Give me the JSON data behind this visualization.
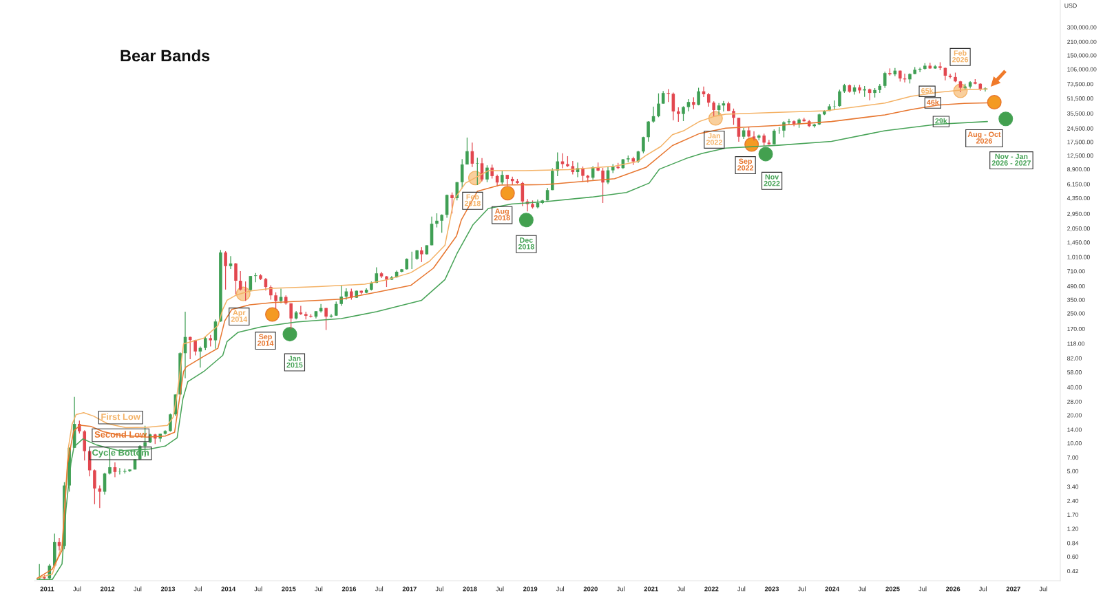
{
  "chart_data": {
    "type": "candlestick",
    "title": "Bear Bands",
    "ylabel": "USD",
    "log": "y",
    "xlim": [
      "2010-10-16",
      "2027-10-12"
    ],
    "ylim": [
      0.33,
      590000
    ],
    "xticks": [
      {
        "value": "2011",
        "label": "2011"
      },
      {
        "value": "2011-07",
        "label": "Jul"
      },
      {
        "value": "2012",
        "label": "2012"
      },
      {
        "value": "2012-07",
        "label": "Jul"
      },
      {
        "value": "2013",
        "label": "2013"
      },
      {
        "value": "2013-07",
        "label": "Jul"
      },
      {
        "value": "2014",
        "label": "2014"
      },
      {
        "value": "2014-07",
        "label": "Jul"
      },
      {
        "value": "2015",
        "label": "2015"
      },
      {
        "value": "2015-07",
        "label": "Jul"
      },
      {
        "value": "2016",
        "label": "2016"
      },
      {
        "value": "2016-07",
        "label": "Jul"
      },
      {
        "value": "2017",
        "label": "2017"
      },
      {
        "value": "2017-07",
        "label": "Jul"
      },
      {
        "value": "2018",
        "label": "2018"
      },
      {
        "value": "2018-07",
        "label": "Jul"
      },
      {
        "value": "2019",
        "label": "2019"
      },
      {
        "value": "2019-07",
        "label": "Jul"
      },
      {
        "value": "2020",
        "label": "2020"
      },
      {
        "value": "2020-07",
        "label": "Jul"
      },
      {
        "value": "2021",
        "label": "2021"
      },
      {
        "value": "2021-07",
        "label": "Jul"
      },
      {
        "value": "2022",
        "label": "2022"
      },
      {
        "value": "2022-07",
        "label": "Jul"
      },
      {
        "value": "2023",
        "label": "2023"
      },
      {
        "value": "2023-07",
        "label": "Jul"
      },
      {
        "value": "2024",
        "label": "2024"
      },
      {
        "value": "2024-07",
        "label": "Jul"
      },
      {
        "value": "2025",
        "label": "2025"
      },
      {
        "value": "2025-07",
        "label": "Jul"
      },
      {
        "value": "2026",
        "label": "2026"
      },
      {
        "value": "2026-07",
        "label": "Jul"
      },
      {
        "value": "2027",
        "label": "2027"
      },
      {
        "value": "2027-07",
        "label": "Jul"
      }
    ],
    "yticks": [
      {
        "value": 0.42,
        "label": "0.42"
      },
      {
        "value": 0.6,
        "label": "0.60"
      },
      {
        "value": 0.84,
        "label": "0.84"
      },
      {
        "value": 1.2,
        "label": "1.20"
      },
      {
        "value": 1.7,
        "label": "1.70"
      },
      {
        "value": 2.4,
        "label": "2.40"
      },
      {
        "value": 3.4,
        "label": "3.40"
      },
      {
        "value": 5,
        "label": "5.00"
      },
      {
        "value": 7,
        "label": "7.00"
      },
      {
        "value": 10,
        "label": "10.00"
      },
      {
        "value": 14,
        "label": "14.00"
      },
      {
        "value": 20,
        "label": "20.00"
      },
      {
        "value": 28,
        "label": "28.00"
      },
      {
        "value": 40,
        "label": "40.00"
      },
      {
        "value": 58,
        "label": "58.00"
      },
      {
        "value": 82,
        "label": "82.00"
      },
      {
        "value": 118,
        "label": "118.00"
      },
      {
        "value": 170,
        "label": "170.00"
      },
      {
        "value": 250,
        "label": "250.00"
      },
      {
        "value": 350,
        "label": "350.00"
      },
      {
        "value": 490,
        "label": "490.00"
      },
      {
        "value": 710,
        "label": "710.00"
      },
      {
        "value": 1010,
        "label": "1,010.00"
      },
      {
        "value": 1450,
        "label": "1,450.00"
      },
      {
        "value": 2050,
        "label": "2,050.00"
      },
      {
        "value": 2950,
        "label": "2,950.00"
      },
      {
        "value": 4350,
        "label": "4,350.00"
      },
      {
        "value": 6150,
        "label": "6,150.00"
      },
      {
        "value": 8900,
        "label": "8,900.00"
      },
      {
        "value": 12500,
        "label": "12,500.00"
      },
      {
        "value": 17500,
        "label": "17,500.00"
      },
      {
        "value": 24500,
        "label": "24,500.00"
      },
      {
        "value": 35500,
        "label": "35,500.00"
      },
      {
        "value": 51500,
        "label": "51,500.00"
      },
      {
        "value": 73500,
        "label": "73,500.00"
      },
      {
        "value": 106000,
        "label": "106,000.00"
      },
      {
        "value": 150000,
        "label": "150,000.00"
      },
      {
        "value": 210000,
        "label": "210,000.00"
      },
      {
        "value": 300000,
        "label": "300,000.00"
      }
    ],
    "series": [
      {
        "x": [
          "2010-11-15",
          "2010-12-15",
          "2011-01-15",
          "2011-02-15",
          "2011-03-15",
          "2011-04-15",
          "2011-05-15",
          "2011-06-15",
          "2011-07-15",
          "2011-08-15",
          "2011-09-15",
          "2011-10-15",
          "2011-11-15",
          "2011-12-15",
          "2012-01-15",
          "2012-02-15",
          "2012-03-15",
          "2012-04-15",
          "2012-05-15",
          "2012-06-15",
          "2012-07-15",
          "2012-08-15",
          "2012-09-15",
          "2012-10-15",
          "2012-11-15",
          "2012-12-15",
          "2013-01-15",
          "2013-02-15",
          "2013-03-15",
          "2013-04-15",
          "2013-05-15",
          "2013-06-15",
          "2013-07-15",
          "2013-08-15",
          "2013-09-15",
          "2013-10-15",
          "2013-11-15",
          "2013-12-15",
          "2014-01-15",
          "2014-02-15",
          "2014-03-15",
          "2014-04-15",
          "2014-05-15",
          "2014-06-15",
          "2014-07-15",
          "2014-08-15",
          "2014-09-15",
          "2014-10-15",
          "2014-11-15",
          "2014-12-15",
          "2015-01-15",
          "2015-02-15",
          "2015-03-15",
          "2015-04-15",
          "2015-05-15",
          "2015-06-15",
          "2015-07-15",
          "2015-08-15",
          "2015-09-15",
          "2015-10-15",
          "2015-11-15",
          "2015-12-15",
          "2016-01-15",
          "2016-02-15",
          "2016-03-15",
          "2016-04-15",
          "2016-05-15",
          "2016-06-15",
          "2016-07-15",
          "2016-08-15",
          "2016-09-15",
          "2016-10-15",
          "2016-11-15",
          "2016-12-15",
          "2017-01-15",
          "2017-02-15",
          "2017-03-15",
          "2017-04-15",
          "2017-05-15",
          "2017-06-15",
          "2017-07-15",
          "2017-08-15",
          "2017-09-15",
          "2017-10-15",
          "2017-11-15",
          "2017-12-15",
          "2018-01-15",
          "2018-02-15",
          "2018-03-15",
          "2018-04-15",
          "2018-05-15",
          "2018-06-15",
          "2018-07-15",
          "2018-08-15",
          "2018-09-15",
          "2018-10-15",
          "2018-11-15",
          "2018-12-15",
          "2019-01-15",
          "2019-02-15",
          "2019-03-15",
          "2019-04-15",
          "2019-05-15",
          "2019-06-15",
          "2019-07-15",
          "2019-08-15",
          "2019-09-15",
          "2019-10-15",
          "2019-11-15",
          "2019-12-15",
          "2020-01-15",
          "2020-02-15",
          "2020-03-15",
          "2020-04-15",
          "2020-05-15",
          "2020-06-15",
          "2020-07-15",
          "2020-08-15",
          "2020-09-15",
          "2020-10-15",
          "2020-11-15",
          "2020-12-15",
          "2021-01-15",
          "2021-02-15",
          "2021-03-15",
          "2021-04-15",
          "2021-05-15",
          "2021-06-15",
          "2021-07-15",
          "2021-08-15",
          "2021-09-15",
          "2021-10-15",
          "2021-11-15",
          "2021-12-15",
          "2022-01-15",
          "2022-02-15",
          "2022-03-15",
          "2022-04-15",
          "2022-05-15",
          "2022-06-15",
          "2022-07-15",
          "2022-08-15",
          "2022-09-15",
          "2022-10-15",
          "2022-11-15",
          "2022-12-15",
          "2023-01-15",
          "2023-02-15",
          "2023-03-15",
          "2023-04-15",
          "2023-05-15",
          "2023-06-15",
          "2023-07-15",
          "2023-08-15",
          "2023-09-15",
          "2023-10-15",
          "2023-11-15",
          "2023-12-15",
          "2024-01-15",
          "2024-02-15",
          "2024-03-15",
          "2024-04-15",
          "2024-05-15",
          "2024-06-15",
          "2024-07-15",
          "2024-08-15",
          "2024-09-15",
          "2024-10-15",
          "2024-11-15",
          "2024-12-15",
          "2025-01-15",
          "2025-02-15",
          "2025-03-15",
          "2025-04-15",
          "2025-05-15",
          "2025-06-15",
          "2025-07-15",
          "2025-08-15",
          "2025-09-15",
          "2025-10-15",
          "2025-11-15",
          "2025-12-15",
          "2026-01-15",
          "2026-02-15",
          "2026-03-15",
          "2026-04-15",
          "2026-05-15",
          "2026-06-15",
          "2026-07-15"
        ],
        "ohlc": [
          [
            0.35,
            0.5,
            0.34,
            0.36
          ],
          [
            0.36,
            0.38,
            0.34,
            0.35
          ],
          [
            0.35,
            0.5,
            0.34,
            0.48
          ],
          [
            0.48,
            1.06,
            0.48,
            0.86
          ],
          [
            0.86,
            0.95,
            0.7,
            0.78
          ],
          [
            0.78,
            3.8,
            0.72,
            3.5
          ],
          [
            3.5,
            9.0,
            3.0,
            8.9
          ],
          [
            8.9,
            31.5,
            8.9,
            16.1
          ],
          [
            16.1,
            17.5,
            12.7,
            13.4
          ],
          [
            13.4,
            13.8,
            6.5,
            8.2
          ],
          [
            8.2,
            8.5,
            4.4,
            5.1
          ],
          [
            5.1,
            5.2,
            2.2,
            3.25
          ],
          [
            3.25,
            3.5,
            2.0,
            3.0
          ],
          [
            3.0,
            4.8,
            2.8,
            4.7
          ],
          [
            4.7,
            7.4,
            4.6,
            5.5
          ],
          [
            5.5,
            6.2,
            4.3,
            4.9
          ],
          [
            4.9,
            5.4,
            4.6,
            4.92
          ],
          [
            4.92,
            5.3,
            4.7,
            5.0
          ],
          [
            5.0,
            5.2,
            4.9,
            5.2
          ],
          [
            5.2,
            6.7,
            5.2,
            6.7
          ],
          [
            6.7,
            9.5,
            6.6,
            9.3
          ],
          [
            9.3,
            15.4,
            7.1,
            10.2
          ],
          [
            10.2,
            12.6,
            10.0,
            12.4
          ],
          [
            12.4,
            12.6,
            9.8,
            11.2
          ],
          [
            11.2,
            12.6,
            10.3,
            12.6
          ],
          [
            12.6,
            13.8,
            12.4,
            13.5
          ],
          [
            13.5,
            20.8,
            13.3,
            20.4
          ],
          [
            20.4,
            33.4,
            19.6,
            33.4
          ],
          [
            33.4,
            95,
            33,
            93
          ],
          [
            93,
            260,
            50,
            139
          ],
          [
            139,
            140,
            80,
            129
          ],
          [
            129,
            130,
            88,
            97
          ],
          [
            97,
            110,
            65,
            106
          ],
          [
            106,
            140,
            100,
            135
          ],
          [
            135,
            146,
            110,
            128
          ],
          [
            128,
            215,
            104,
            204
          ],
          [
            204,
            1200,
            202,
            1130
          ],
          [
            1130,
            1165,
            450,
            805
          ],
          [
            805,
            1030,
            750,
            860
          ],
          [
            860,
            870,
            400,
            560
          ],
          [
            560,
            710,
            440,
            450
          ],
          [
            450,
            550,
            340,
            445
          ],
          [
            445,
            630,
            430,
            630
          ],
          [
            630,
            680,
            540,
            640
          ],
          [
            640,
            660,
            570,
            585
          ],
          [
            585,
            600,
            440,
            480
          ],
          [
            480,
            500,
            350,
            390
          ],
          [
            390,
            420,
            280,
            340
          ],
          [
            340,
            460,
            320,
            375
          ],
          [
            375,
            390,
            310,
            320
          ],
          [
            320,
            320,
            170,
            220
          ],
          [
            220,
            265,
            215,
            255
          ],
          [
            255,
            300,
            240,
            245
          ],
          [
            245,
            260,
            215,
            235
          ],
          [
            235,
            245,
            225,
            230
          ],
          [
            230,
            265,
            220,
            263
          ],
          [
            263,
            315,
            255,
            285
          ],
          [
            285,
            285,
            165,
            230
          ],
          [
            230,
            245,
            225,
            236
          ],
          [
            236,
            335,
            235,
            315
          ],
          [
            315,
            500,
            300,
            378
          ],
          [
            378,
            465,
            350,
            430
          ],
          [
            430,
            460,
            350,
            368
          ],
          [
            368,
            440,
            365,
            437
          ],
          [
            437,
            440,
            400,
            416
          ],
          [
            416,
            465,
            410,
            448
          ],
          [
            448,
            550,
            440,
            531
          ],
          [
            531,
            780,
            530,
            673
          ],
          [
            673,
            700,
            600,
            624
          ],
          [
            624,
            630,
            480,
            575
          ],
          [
            575,
            630,
            570,
            609
          ],
          [
            609,
            720,
            605,
            700
          ],
          [
            700,
            750,
            690,
            745
          ],
          [
            745,
            975,
            740,
            963
          ],
          [
            963,
            1150,
            750,
            965
          ],
          [
            965,
            1200,
            940,
            1190
          ],
          [
            1190,
            1290,
            890,
            1080
          ],
          [
            1080,
            1350,
            1070,
            1350
          ],
          [
            1350,
            2750,
            1350,
            2300
          ],
          [
            2300,
            2980,
            2100,
            2480
          ],
          [
            2480,
            2900,
            1840,
            2870
          ],
          [
            2870,
            4750,
            2670,
            4700
          ],
          [
            4700,
            5000,
            2970,
            4340
          ],
          [
            4340,
            6470,
            4100,
            6450
          ],
          [
            6450,
            11400,
            5500,
            10000
          ],
          [
            10000,
            19500,
            10000,
            13900
          ],
          [
            13900,
            17200,
            9400,
            10200
          ],
          [
            10200,
            11800,
            6000,
            10300
          ],
          [
            10300,
            11700,
            6600,
            6900
          ],
          [
            6900,
            9800,
            6450,
            9250
          ],
          [
            9250,
            9980,
            7050,
            7500
          ],
          [
            7500,
            7780,
            5800,
            6400
          ],
          [
            6400,
            8500,
            6100,
            7730
          ],
          [
            7730,
            7760,
            5880,
            7000
          ],
          [
            7000,
            7400,
            6100,
            6620
          ],
          [
            6620,
            7000,
            6200,
            6320
          ],
          [
            6320,
            6540,
            3560,
            4000
          ],
          [
            4000,
            4250,
            3120,
            3740
          ],
          [
            3740,
            4100,
            3350,
            3460
          ],
          [
            3460,
            4200,
            3380,
            3850
          ],
          [
            3850,
            4150,
            3750,
            4100
          ],
          [
            4100,
            5600,
            4080,
            5300
          ],
          [
            5300,
            9100,
            5300,
            8550
          ],
          [
            8550,
            13500,
            7500,
            10800
          ],
          [
            10800,
            13200,
            9100,
            10100
          ],
          [
            10100,
            12300,
            9400,
            9600
          ],
          [
            9600,
            10900,
            7800,
            8300
          ],
          [
            8300,
            10500,
            7300,
            9150
          ],
          [
            9150,
            9500,
            6500,
            7550
          ],
          [
            7550,
            7750,
            6400,
            7200
          ],
          [
            7200,
            9580,
            6850,
            9350
          ],
          [
            9350,
            10500,
            8450,
            8600
          ],
          [
            8600,
            9200,
            3850,
            6400
          ],
          [
            6400,
            9450,
            6150,
            8650
          ],
          [
            8650,
            10100,
            8100,
            9450
          ],
          [
            9450,
            10400,
            8900,
            9150
          ],
          [
            9150,
            11450,
            8950,
            11350
          ],
          [
            11350,
            12500,
            10600,
            11650
          ],
          [
            11650,
            12100,
            9900,
            10780
          ],
          [
            10780,
            14100,
            10400,
            13800
          ],
          [
            13800,
            19900,
            13200,
            19700
          ],
          [
            19700,
            29300,
            17600,
            29000
          ],
          [
            29000,
            41900,
            28100,
            33100
          ],
          [
            33100,
            58300,
            32300,
            45200
          ],
          [
            45200,
            61800,
            45000,
            58800
          ],
          [
            58800,
            64900,
            47000,
            57700
          ],
          [
            57700,
            59500,
            30000,
            37300
          ],
          [
            37300,
            41300,
            28800,
            35000
          ],
          [
            35000,
            42400,
            29300,
            41500
          ],
          [
            41500,
            50500,
            37300,
            47100
          ],
          [
            47100,
            52900,
            39600,
            43800
          ],
          [
            43800,
            67000,
            43300,
            61300
          ],
          [
            61300,
            69000,
            53300,
            57000
          ],
          [
            57000,
            59000,
            42000,
            46300
          ],
          [
            46300,
            47900,
            32900,
            38500
          ],
          [
            38500,
            45800,
            34300,
            43200
          ],
          [
            43200,
            48200,
            37200,
            45500
          ],
          [
            45500,
            47400,
            37700,
            37700
          ],
          [
            37700,
            40000,
            26700,
            31800
          ],
          [
            31800,
            31900,
            17600,
            19900
          ],
          [
            19900,
            24700,
            18800,
            23300
          ],
          [
            23300,
            25200,
            19600,
            20000
          ],
          [
            20000,
            22800,
            18100,
            19400
          ],
          [
            19400,
            21000,
            18200,
            20500
          ],
          [
            20500,
            21500,
            15500,
            17200
          ],
          [
            17200,
            18400,
            16300,
            16500
          ],
          [
            16500,
            23900,
            16500,
            23100
          ],
          [
            23100,
            25200,
            21400,
            23150
          ],
          [
            23150,
            29200,
            19600,
            28500
          ],
          [
            28500,
            31000,
            26900,
            29200
          ],
          [
            29200,
            29800,
            25800,
            27200
          ],
          [
            27200,
            31400,
            24800,
            30500
          ],
          [
            30500,
            31800,
            28900,
            29200
          ],
          [
            29200,
            30200,
            25200,
            25900
          ],
          [
            25900,
            27500,
            24900,
            27000
          ],
          [
            27000,
            35200,
            26600,
            34600
          ],
          [
            34600,
            38400,
            34100,
            37700
          ],
          [
            37700,
            44700,
            37600,
            42300
          ],
          [
            42300,
            48900,
            38500,
            42600
          ],
          [
            42600,
            63900,
            41900,
            61200
          ],
          [
            61200,
            73800,
            59000,
            71300
          ],
          [
            71300,
            72800,
            59200,
            60700
          ],
          [
            60700,
            71900,
            56600,
            67500
          ],
          [
            67500,
            72000,
            58400,
            62700
          ],
          [
            62700,
            70000,
            53500,
            64600
          ],
          [
            64600,
            65600,
            49100,
            58900
          ],
          [
            58900,
            66500,
            52600,
            63300
          ],
          [
            63300,
            73600,
            58900,
            70200
          ],
          [
            70200,
            99600,
            66800,
            96400
          ],
          [
            96400,
            108300,
            90500,
            93400
          ],
          [
            93400,
            109300,
            89200,
            102400
          ],
          [
            102400,
            102700,
            78200,
            84300
          ],
          [
            84300,
            95000,
            76600,
            82500
          ],
          [
            82500,
            95700,
            74500,
            94200
          ],
          [
            94200,
            111900,
            93400,
            104600
          ],
          [
            104600,
            110600,
            98200,
            107100
          ],
          [
            107100,
            123200,
            105100,
            115700
          ],
          [
            115700,
            124500,
            107300,
            108200
          ],
          [
            108200,
            117900,
            107300,
            114000
          ],
          [
            114000,
            126200,
            103500,
            109600
          ],
          [
            109600,
            110600,
            80600,
            90400
          ],
          [
            90400,
            94600,
            84400,
            87500
          ],
          [
            87500,
            97500,
            77000,
            78500
          ],
          [
            78500,
            79500,
            60000,
            67000
          ],
          [
            67000,
            74000,
            64000,
            69000
          ],
          [
            69000,
            79000,
            66000,
            77000
          ],
          [
            77000,
            83000,
            73000,
            74000
          ],
          [
            74000,
            75000,
            62000,
            64000
          ],
          [
            64000,
            67500,
            61000,
            66000
          ]
        ],
        "colors": [
          "#3f9f54",
          "#e2474f",
          "#3f9f54",
          "#3f9f54",
          "#e2474f",
          "#3f9f54",
          "#3f9f54",
          "#3f9f54",
          "#e2474f",
          "#e2474f",
          "#e2474f",
          "#e2474f",
          "#e2474f",
          "#3f9f54",
          "#3f9f54",
          "#e2474f",
          "#3f9f54",
          "#3f9f54",
          "#3f9f54",
          "#3f9f54",
          "#3f9f54",
          "#3f9f54",
          "#3f9f54",
          "#e2474f",
          "#3f9f54",
          "#3f9f54",
          "#3f9f54",
          "#3f9f54",
          "#3f9f54",
          "#3f9f54",
          "#e2474f",
          "#e2474f",
          "#3f9f54",
          "#3f9f54",
          "#e2474f",
          "#3f9f54",
          "#3f9f54",
          "#e2474f",
          "#3f9f54",
          "#e2474f",
          "#e2474f",
          "#e2474f",
          "#3f9f54",
          "#3f9f54",
          "#e2474f",
          "#e2474f",
          "#e2474f",
          "#e2474f",
          "#3f9f54",
          "#e2474f",
          "#e2474f",
          "#3f9f54",
          "#e2474f",
          "#e2474f",
          "#e2474f",
          "#3f9f54",
          "#3f9f54",
          "#e2474f",
          "#3f9f54",
          "#3f9f54",
          "#3f9f54",
          "#3f9f54",
          "#e2474f",
          "#3f9f54",
          "#e2474f",
          "#3f9f54",
          "#3f9f54",
          "#3f9f54",
          "#e2474f",
          "#e2474f",
          "#3f9f54",
          "#3f9f54",
          "#3f9f54",
          "#3f9f54",
          "#3f9f54",
          "#3f9f54",
          "#e2474f",
          "#3f9f54",
          "#3f9f54",
          "#3f9f54",
          "#3f9f54",
          "#3f9f54",
          "#e2474f",
          "#3f9f54",
          "#3f9f54",
          "#3f9f54",
          "#e2474f",
          "#3f9f54",
          "#e2474f",
          "#3f9f54",
          "#e2474f",
          "#e2474f",
          "#3f9f54",
          "#e2474f",
          "#e2474f",
          "#e2474f",
          "#e2474f",
          "#e2474f",
          "#e2474f",
          "#3f9f54",
          "#3f9f54",
          "#3f9f54",
          "#3f9f54",
          "#3f9f54",
          "#e2474f",
          "#e2474f",
          "#e2474f",
          "#3f9f54",
          "#e2474f",
          "#e2474f",
          "#3f9f54",
          "#e2474f",
          "#e2474f",
          "#3f9f54",
          "#3f9f54",
          "#e2474f",
          "#3f9f54",
          "#3f9f54",
          "#e2474f",
          "#3f9f54",
          "#3f9f54",
          "#3f9f54",
          "#3f9f54",
          "#3f9f54",
          "#3f9f54",
          "#e2474f",
          "#e2474f",
          "#e2474f",
          "#3f9f54",
          "#3f9f54",
          "#e2474f",
          "#3f9f54",
          "#e2474f",
          "#e2474f",
          "#e2474f",
          "#3f9f54",
          "#3f9f54",
          "#e2474f",
          "#e2474f",
          "#e2474f",
          "#3f9f54",
          "#e2474f",
          "#e2474f",
          "#3f9f54",
          "#e2474f",
          "#e2474f",
          "#3f9f54",
          "#3f9f54",
          "#3f9f54",
          "#3f9f54",
          "#e2474f",
          "#3f9f54",
          "#e2474f",
          "#e2474f",
          "#3f9f54",
          "#3f9f54",
          "#3f9f54",
          "#3f9f54",
          "#3f9f54",
          "#3f9f54",
          "#3f9f54",
          "#e2474f",
          "#3f9f54",
          "#e2474f",
          "#3f9f54",
          "#e2474f",
          "#3f9f54",
          "#3f9f54",
          "#3f9f54",
          "#e2474f",
          "#3f9f54",
          "#e2474f",
          "#e2474f",
          "#3f9f54",
          "#3f9f54",
          "#3f9f54",
          "#3f9f54",
          "#e2474f",
          "#3f9f54",
          "#e2474f",
          "#e2474f",
          "#e2474f",
          "#e2474f",
          "#e2474f",
          "#3f9f54",
          "#3f9f54",
          "#e2474f",
          "#e2474f",
          "#3f9f54"
        ]
      },
      {
        "type": "line",
        "name": "First Low",
        "color": "#f4b266",
        "x": [
          "2010-11-01",
          "2011-02-01",
          "2011-04-01",
          "2011-04-20",
          "2011-05-10",
          "2011-06-01",
          "2011-06-25",
          "2011-08-10",
          "2011-10-10",
          "2012-01-01",
          "2012-04-20",
          "2012-08-25",
          "2012-12-28",
          "2013-02-01",
          "2013-02-25",
          "2013-03-15",
          "2013-04-05",
          "2013-08-05",
          "2013-10-30",
          "2013-11-28",
          "2013-12-24",
          "2014-02-15",
          "2014-05-10",
          "2014-09-25",
          "2015-07-01",
          "2016-04-05",
          "2016-08-20",
          "2017-01-08",
          "2017-05-01",
          "2017-08-03",
          "2017-09-27",
          "2017-12-05",
          "2018-04-22",
          "2018-11-17",
          "2019-08-22",
          "2020-05-25",
          "2020-10-12",
          "2020-12-01",
          "2021-02-28",
          "2021-05-10",
          "2021-07-20",
          "2021-10-20",
          "2022-01-22",
          "2022-03-28",
          "2023-02-10",
          "2023-11-25",
          "2024-11-15",
          "2025-04-22",
          "2025-10-01",
          "2026-03-10",
          "2026-07-28"
        ],
        "values": [
          0.35,
          0.39,
          0.79,
          2.6,
          9.1,
          16.0,
          20.3,
          21.3,
          19.5,
          16.2,
          14.7,
          14.8,
          15.5,
          19.0,
          33.5,
          59,
          117,
          135,
          184,
          275,
          345,
          391,
          434,
          464,
          485,
          514,
          576,
          683,
          907,
          1349,
          4200,
          6300,
          8570,
          8570,
          8810,
          9600,
          10770,
          12500,
          15600,
          20900,
          23200,
          29000,
          33100,
          34800,
          36500,
          37800,
          45900,
          54100,
          59700,
          63800,
          65000
        ]
      },
      {
        "type": "line",
        "name": "Second Low",
        "color": "#e7762f",
        "x": [
          "2010-11-01",
          "2011-02-01",
          "2011-04-01",
          "2011-05-05",
          "2011-06-10",
          "2011-07-20",
          "2011-09-25",
          "2011-12-05",
          "2012-03-10",
          "2012-08-25",
          "2012-12-15",
          "2013-02-10",
          "2013-03-05",
          "2013-04-05",
          "2013-04-20",
          "2013-08-05",
          "2013-10-30",
          "2013-12-10",
          "2014-01-22",
          "2014-05-10",
          "2014-09-25",
          "2015-07-01",
          "2015-11-15",
          "2016-06-15",
          "2017-01-08",
          "2017-05-25",
          "2017-10-12",
          "2017-11-10",
          "2018-02-15",
          "2018-07-01",
          "2019-04-05",
          "2020-05-25",
          "2020-12-01",
          "2021-05-10",
          "2021-10-20",
          "2022-03-28",
          "2023-02-10",
          "2023-12-28",
          "2024-11-15",
          "2025-04-22",
          "2025-10-01",
          "2026-03-10",
          "2026-07-28"
        ],
        "values": [
          0.35,
          0.44,
          0.7,
          6.1,
          13.5,
          15.6,
          15.1,
          13.3,
          12.2,
          11.6,
          11.9,
          13.1,
          25.2,
          59,
          66,
          86,
          105,
          207,
          275,
          308,
          326,
          345,
          355,
          421,
          499,
          765,
          1698,
          2525,
          5145,
          5990,
          6080,
          7030,
          9300,
          16000,
          21500,
          24600,
          26300,
          29000,
          34200,
          39000,
          43600,
          45500,
          46000
        ]
      },
      {
        "type": "line",
        "name": "Cycle Bottom",
        "color": "#47a357",
        "x": [
          "2010-11-01",
          "2011-02-01",
          "2011-04-01",
          "2011-04-25",
          "2011-05-25",
          "2011-06-12",
          "2011-08-05",
          "2011-10-25",
          "2012-03-10",
          "2012-09-10",
          "2012-12-15",
          "2013-02-25",
          "2013-04-01",
          "2013-05-01",
          "2013-08-05",
          "2013-11-28",
          "2013-12-24",
          "2014-03-01",
          "2014-07-20",
          "2015-02-15",
          "2015-11-15",
          "2016-06-15",
          "2017-03-15",
          "2017-08-03",
          "2017-10-15",
          "2018-01-20",
          "2018-04-22",
          "2018-09-10",
          "2019-04-05",
          "2020-01-08",
          "2020-08-05",
          "2020-12-20",
          "2021-02-20",
          "2021-08-01",
          "2021-11-05",
          "2022-03-28",
          "2023-02-10",
          "2023-12-28",
          "2024-11-15",
          "2025-10-01",
          "2026-07-28"
        ],
        "values": [
          0.34,
          0.34,
          0.5,
          1.95,
          6.1,
          9.1,
          11.1,
          9.6,
          8.3,
          8.6,
          9.3,
          11.4,
          30,
          46,
          59,
          88,
          124,
          156,
          179,
          201,
          219,
          260,
          345,
          576,
          1100,
          2250,
          3360,
          3760,
          3980,
          4460,
          5000,
          6300,
          8900,
          11600,
          13150,
          15000,
          16100,
          17700,
          23100,
          27100,
          29000
        ]
      },
      {
        "type": "scatter",
        "color": "#f9cf9c",
        "x": [
          "2014-04-01",
          "2018-02-03",
          "2022-01-26",
          "2026-02-15"
        ],
        "values": [
          405,
          7150,
          31400,
          62000
        ]
      },
      {
        "type": "scatter",
        "color": "#f49a23",
        "x": [
          "2014-09-24",
          "2018-08-17",
          "2022-09-01",
          "2026-09-08"
        ],
        "values": [
          243,
          4910,
          16400,
          46800
        ]
      },
      {
        "type": "scatter",
        "color": "#43a04f",
        "x": [
          "2015-01-08",
          "2018-12-08",
          "2022-11-25",
          "2026-11-16"
        ],
        "values": [
          149,
          2525,
          12950,
          31000
        ]
      }
    ],
    "annotations": [
      {
        "text": "Apr 2014",
        "x": "2014-04-01",
        "y": 405
      },
      {
        "text": "Sep 2014",
        "x": "2014-09-24",
        "y": 243
      },
      {
        "text": "Jan 2015",
        "x": "2015-01-08",
        "y": 149
      },
      {
        "text": "Feb 2018",
        "x": "2018-02-03",
        "y": 7150
      },
      {
        "text": "Aug 2018",
        "x": "2018-08-17",
        "y": 4910
      },
      {
        "text": "Dec 2018",
        "x": "2018-12-08",
        "y": 2525
      },
      {
        "text": "Jan 2022",
        "x": "2022-01-26",
        "y": 31400
      },
      {
        "text": "Sep 2022",
        "x": "2022-09-01",
        "y": 16400
      },
      {
        "text": "Nov 2022",
        "x": "2022-11-25",
        "y": 12950
      },
      "Feb 2026",
      "Aug - Oct 2026",
      "Nov - Jan 2026 - 2027",
      "65k",
      {
        "text": "46k",
        "x": "2025-09-01",
        "y": 46000
      },
      {
        "text": "29k",
        "x": "2025-10-21",
        "y": 29000
      }
    ]
  }
}
